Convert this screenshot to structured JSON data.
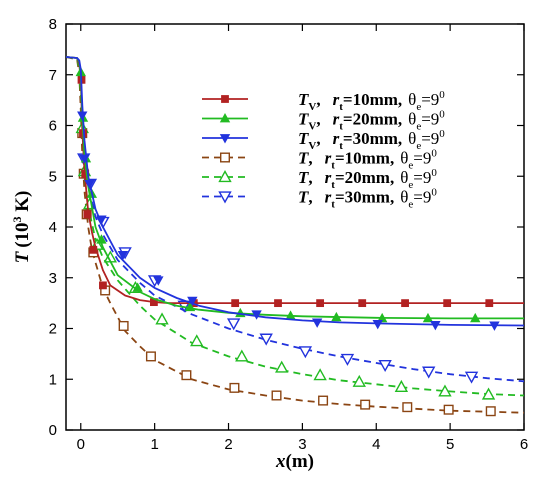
{
  "chart_data": {
    "type": "line",
    "xlabel": {
      "main": "x",
      "unit": "(m)"
    },
    "ylabel": {
      "main": "T",
      "unit": "(10",
      "sup": "3",
      "tail": " K)"
    },
    "xlim": [
      -0.2,
      6
    ],
    "ylim": [
      0,
      8
    ],
    "xticks": [
      0,
      1,
      2,
      3,
      4,
      5,
      6
    ],
    "yticks": [
      0,
      1,
      2,
      3,
      4,
      5,
      6,
      7,
      8
    ],
    "grid": false,
    "legend_position": "upper-right",
    "series": [
      {
        "name": "T_V, r_t=10mm, θ_e=9⁰",
        "legend": {
          "var": "T",
          "var_sub": "V",
          "r": "r",
          "r_sub": "t",
          "r_val": "=10mm,",
          "th": "θ",
          "th_sub": "e",
          "th_val": "=9",
          "th_sup": "0"
        },
        "color": "#b22222",
        "dash": "solid",
        "marker": "square",
        "filled": true,
        "x": [
          -0.2,
          -0.05,
          -0.02,
          0.0,
          0.02,
          0.05,
          0.1,
          0.15,
          0.2,
          0.3,
          0.4,
          0.6,
          0.8,
          1.0,
          1.2,
          1.5,
          2.0,
          3.0,
          4.0,
          5.0,
          6.0
        ],
        "y": [
          7.35,
          7.33,
          7.2,
          6.9,
          5.9,
          5.1,
          4.3,
          3.9,
          3.6,
          3.15,
          2.85,
          2.65,
          2.56,
          2.52,
          2.5,
          2.5,
          2.5,
          2.5,
          2.5,
          2.5,
          2.5
        ],
        "markers_x": [
          0.01,
          0.03,
          0.06,
          0.09,
          0.17,
          0.3,
          0.99,
          1.53,
          2.09,
          2.67,
          3.24,
          3.81,
          4.39,
          4.96,
          5.53
        ],
        "markers_y": [
          6.9,
          5.85,
          5.05,
          4.25,
          3.55,
          2.85,
          2.52,
          2.5,
          2.5,
          2.5,
          2.5,
          2.5,
          2.5,
          2.5,
          2.5
        ]
      },
      {
        "name": "T_V, r_t=20mm, θ_e=9⁰",
        "legend": {
          "var": "T",
          "var_sub": "V",
          "r": "r",
          "r_sub": "t",
          "r_val": "=20mm,",
          "th": "θ",
          "th_sub": "e",
          "th_val": "=9",
          "th_sup": "0"
        },
        "color": "#22bb22",
        "dash": "solid",
        "marker": "triangle-up",
        "filled": true,
        "x": [
          -0.2,
          -0.05,
          -0.02,
          0.0,
          0.02,
          0.05,
          0.1,
          0.2,
          0.3,
          0.5,
          0.8,
          1.0,
          1.3,
          1.6,
          2.0,
          2.5,
          3.0,
          4.0,
          5.0,
          6.0
        ],
        "y": [
          7.35,
          7.33,
          7.25,
          7.0,
          6.2,
          5.4,
          4.8,
          4.0,
          3.6,
          3.05,
          2.72,
          2.58,
          2.45,
          2.37,
          2.31,
          2.27,
          2.24,
          2.21,
          2.2,
          2.2
        ],
        "markers_x": [
          0.0,
          0.03,
          0.07,
          0.15,
          0.28,
          0.77,
          1.48,
          2.16,
          2.84,
          3.46,
          4.08,
          4.7,
          5.34
        ],
        "markers_y": [
          7.05,
          6.15,
          5.35,
          4.65,
          3.75,
          2.8,
          2.42,
          2.3,
          2.25,
          2.22,
          2.2,
          2.2,
          2.2
        ]
      },
      {
        "name": "T_V, r_t=30mm, θ_e=9⁰",
        "legend": {
          "var": "T",
          "var_sub": "V",
          "r": "r",
          "r_sub": "t",
          "r_val": "=30mm,",
          "th": "θ",
          "th_sub": "e",
          "th_val": "=9",
          "th_sup": "0"
        },
        "color": "#2233dd",
        "dash": "solid",
        "marker": "triangle-down",
        "filled": true,
        "x": [
          -0.2,
          -0.05,
          -0.02,
          0.0,
          0.02,
          0.05,
          0.1,
          0.2,
          0.3,
          0.5,
          0.8,
          1.0,
          1.3,
          1.6,
          2.0,
          2.5,
          3.0,
          3.5,
          4.0,
          5.0,
          6.0
        ],
        "y": [
          7.35,
          7.33,
          7.28,
          7.1,
          6.4,
          5.7,
          5.0,
          4.35,
          4.0,
          3.45,
          3.0,
          2.8,
          2.6,
          2.45,
          2.32,
          2.22,
          2.16,
          2.12,
          2.1,
          2.07,
          2.06
        ],
        "markers_x": [
          0.02,
          0.05,
          0.12,
          0.28,
          0.57,
          1.05,
          1.51,
          2.38,
          3.2,
          4.02,
          4.8,
          5.6
        ],
        "markers_y": [
          6.2,
          5.35,
          4.85,
          4.15,
          3.45,
          2.95,
          2.55,
          2.28,
          2.12,
          2.09,
          2.07,
          2.06
        ]
      },
      {
        "name": "T, r_t=10mm, θ_e=9⁰",
        "legend": {
          "var": "T",
          "var_sub": "",
          "r": "r",
          "r_sub": "t",
          "r_val": "=10mm,",
          "th": "θ",
          "th_sub": "e",
          "th_val": "=9",
          "th_sup": "0"
        },
        "color": "#8b4513",
        "dash": "dashed",
        "marker": "square",
        "filled": false,
        "x": [
          -0.2,
          -0.05,
          -0.02,
          0.0,
          0.02,
          0.05,
          0.1,
          0.15,
          0.2,
          0.3,
          0.4,
          0.6,
          0.8,
          1.0,
          1.5,
          2.0,
          2.5,
          3.0,
          3.5,
          4.0,
          5.0,
          6.0
        ],
        "y": [
          7.35,
          7.3,
          7.0,
          6.3,
          5.4,
          4.7,
          4.0,
          3.55,
          3.3,
          2.8,
          2.5,
          1.95,
          1.65,
          1.38,
          1.0,
          0.8,
          0.68,
          0.58,
          0.51,
          0.46,
          0.38,
          0.34
        ],
        "markers_x": [
          0.02,
          0.04,
          0.08,
          0.17,
          0.33,
          0.58,
          0.95,
          1.43,
          2.08,
          2.65,
          3.28,
          3.85,
          4.42,
          4.98,
          5.55
        ],
        "markers_y": [
          5.85,
          5.05,
          4.25,
          3.5,
          2.75,
          2.05,
          1.45,
          1.08,
          0.83,
          0.68,
          0.58,
          0.5,
          0.45,
          0.4,
          0.37
        ]
      },
      {
        "name": "T, r_t=20mm, θ_e=9⁰",
        "legend": {
          "var": "T",
          "var_sub": "",
          "r": "r",
          "r_sub": "t",
          "r_val": "=20mm,",
          "th": "θ",
          "th_sub": "e",
          "th_val": "=9",
          "th_sup": "0"
        },
        "color": "#22bb22",
        "dash": "dashed",
        "marker": "triangle-up",
        "filled": false,
        "x": [
          -0.2,
          -0.05,
          -0.02,
          0.0,
          0.02,
          0.05,
          0.1,
          0.2,
          0.3,
          0.5,
          0.8,
          1.0,
          1.5,
          2.0,
          2.5,
          3.0,
          3.5,
          4.0,
          4.5,
          5.0,
          5.5,
          6.0
        ],
        "y": [
          7.35,
          7.32,
          7.1,
          6.6,
          5.8,
          5.0,
          4.4,
          3.75,
          3.4,
          2.95,
          2.45,
          2.18,
          1.72,
          1.45,
          1.25,
          1.1,
          0.98,
          0.9,
          0.82,
          0.76,
          0.71,
          0.68
        ],
        "markers_x": [
          0.02,
          0.05,
          0.12,
          0.22,
          0.4,
          0.74,
          1.1,
          1.57,
          2.18,
          2.72,
          3.24,
          3.77,
          4.34,
          4.93,
          5.52
        ],
        "markers_y": [
          5.95,
          5.1,
          4.45,
          3.65,
          3.4,
          2.8,
          2.18,
          1.75,
          1.45,
          1.23,
          1.08,
          0.95,
          0.85,
          0.76,
          0.7
        ]
      },
      {
        "name": "T, r_t=30mm, θ_e=9⁰",
        "legend": {
          "var": "T",
          "var_sub": "",
          "r": "r",
          "r_sub": "t",
          "r_val": "=30mm,",
          "th": "θ",
          "th_sub": "e",
          "th_val": "=9",
          "th_sup": "0"
        },
        "color": "#2233dd",
        "dash": "dashed",
        "marker": "triangle-down",
        "filled": false,
        "x": [
          -0.2,
          -0.05,
          -0.02,
          0.0,
          0.02,
          0.05,
          0.1,
          0.2,
          0.3,
          0.5,
          0.8,
          1.0,
          1.5,
          2.0,
          2.5,
          3.0,
          3.5,
          4.0,
          4.5,
          5.0,
          5.5,
          6.0
        ],
        "y": [
          7.35,
          7.33,
          7.2,
          6.9,
          6.1,
          5.4,
          4.8,
          4.2,
          3.85,
          3.35,
          2.9,
          2.65,
          2.28,
          2.0,
          1.78,
          1.6,
          1.45,
          1.32,
          1.2,
          1.1,
          1.02,
          0.96
        ],
        "markers_x": [
          0.04,
          0.13,
          0.3,
          0.6,
          1.0,
          1.4,
          2.07,
          2.51,
          3.04,
          3.61,
          4.12,
          4.71,
          5.29
        ],
        "markers_y": [
          5.35,
          4.85,
          4.1,
          3.5,
          2.95,
          2.45,
          2.1,
          1.8,
          1.55,
          1.4,
          1.28,
          1.15,
          1.05
        ]
      }
    ]
  }
}
